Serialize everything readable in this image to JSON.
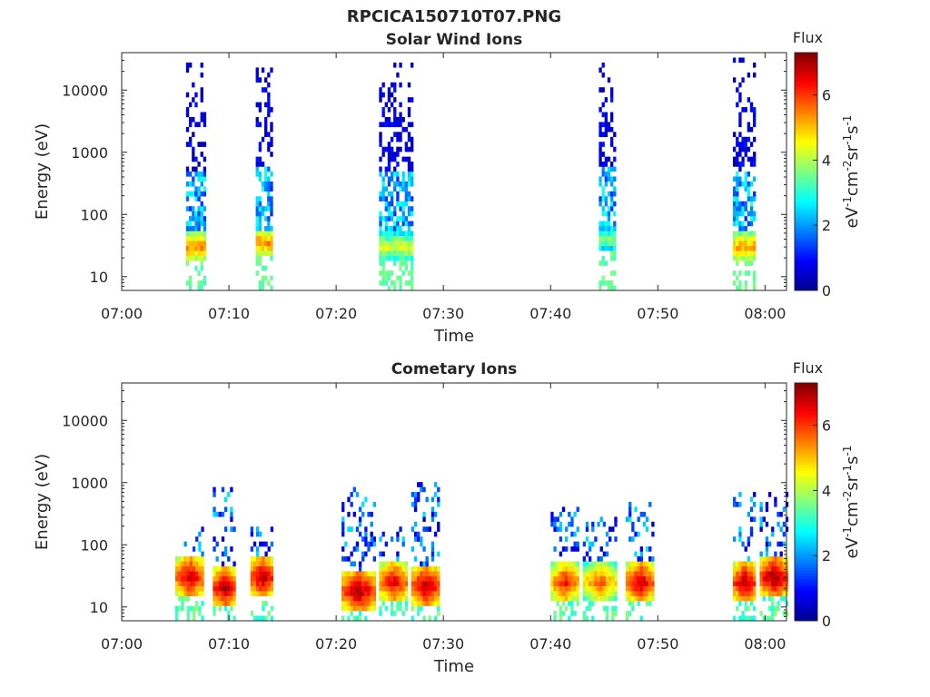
{
  "figure_title": "RPCICA150710T07.PNG",
  "colors": {
    "axis": "#262626",
    "background": "#ffffff",
    "colormap": [
      "#00008f",
      "#0000ff",
      "#0080ff",
      "#00ffff",
      "#80ff80",
      "#ffff00",
      "#ff8000",
      "#ff0000",
      "#800000"
    ]
  },
  "chart_data": [
    {
      "type": "heatmap",
      "title": "Solar Wind Ions",
      "xlabel": "Time",
      "ylabel": "Energy (eV)",
      "yscale": "log",
      "xlim": [
        "07:00",
        "08:02"
      ],
      "ylim": [
        6,
        40000
      ],
      "x_ticks": [
        "07:00",
        "07:10",
        "07:20",
        "07:30",
        "07:40",
        "07:50",
        "08:00"
      ],
      "y_ticks": [
        "10",
        "100",
        "1000",
        "10000"
      ],
      "colorbar": {
        "title": "Flux",
        "label": "eV-1cm-2sr-1s-1",
        "range": [
          0,
          7.3
        ],
        "ticks": [
          "0",
          "2",
          "4",
          "6"
        ]
      },
      "bursts": [
        {
          "start": "07:06:00",
          "end": "07:07:50",
          "peak_energy": 30,
          "peak_flux": 5.5,
          "high_energy_extent": 30000
        },
        {
          "start": "07:12:30",
          "end": "07:14:00",
          "peak_energy": 35,
          "peak_flux": 5.5,
          "high_energy_extent": 25000
        },
        {
          "start": "07:24:00",
          "end": "07:27:00",
          "peak_energy": 30,
          "peak_flux": 4.5,
          "high_energy_extent": 30000
        },
        {
          "start": "07:44:30",
          "end": "07:46:00",
          "peak_energy": 40,
          "peak_flux": 3.8,
          "high_energy_extent": 30000
        },
        {
          "start": "07:57:00",
          "end": "07:59:00",
          "peak_energy": 30,
          "peak_flux": 5.3,
          "high_energy_extent": 35000
        }
      ]
    },
    {
      "type": "heatmap",
      "title": "Cometary Ions",
      "xlabel": "Time",
      "ylabel": "Energy (eV)",
      "yscale": "log",
      "xlim": [
        "07:00",
        "08:02"
      ],
      "ylim": [
        6,
        40000
      ],
      "x_ticks": [
        "07:00",
        "07:10",
        "07:20",
        "07:30",
        "07:40",
        "07:50",
        "08:00"
      ],
      "y_ticks": [
        "10",
        "100",
        "1000",
        "10000"
      ],
      "colorbar": {
        "title": "Flux",
        "label": "eV-1cm-2sr-1s-1",
        "range": [
          0,
          7.3
        ],
        "ticks": [
          "0",
          "2",
          "4",
          "6"
        ]
      },
      "bursts": [
        {
          "start": "07:05:00",
          "end": "07:07:30",
          "peak_energy": 30,
          "peak_flux": 7.0,
          "high_energy_extent": 200
        },
        {
          "start": "07:08:30",
          "end": "07:10:30",
          "peak_energy": 20,
          "peak_flux": 7.2,
          "high_energy_extent": 1000
        },
        {
          "start": "07:12:00",
          "end": "07:14:00",
          "peak_energy": 30,
          "peak_flux": 7.2,
          "high_energy_extent": 200
        },
        {
          "start": "07:20:30",
          "end": "07:23:30",
          "peak_energy": 18,
          "peak_flux": 7.2,
          "high_energy_extent": 900
        },
        {
          "start": "07:24:00",
          "end": "07:26:30",
          "peak_energy": 25,
          "peak_flux": 6.8,
          "high_energy_extent": 200
        },
        {
          "start": "07:27:00",
          "end": "07:29:30",
          "peak_energy": 22,
          "peak_flux": 7.2,
          "high_energy_extent": 1000
        },
        {
          "start": "07:40:00",
          "end": "07:42:30",
          "peak_energy": 25,
          "peak_flux": 6.5,
          "high_energy_extent": 400
        },
        {
          "start": "07:43:00",
          "end": "07:46:00",
          "peak_energy": 25,
          "peak_flux": 6.0,
          "high_energy_extent": 300
        },
        {
          "start": "07:47:00",
          "end": "07:49:30",
          "peak_energy": 25,
          "peak_flux": 7.0,
          "high_energy_extent": 500
        },
        {
          "start": "07:57:00",
          "end": "07:59:00",
          "peak_energy": 25,
          "peak_flux": 7.2,
          "high_energy_extent": 700
        },
        {
          "start": "07:59:30",
          "end": "08:02:00",
          "peak_energy": 30,
          "peak_flux": 7.3,
          "high_energy_extent": 700
        }
      ]
    }
  ]
}
